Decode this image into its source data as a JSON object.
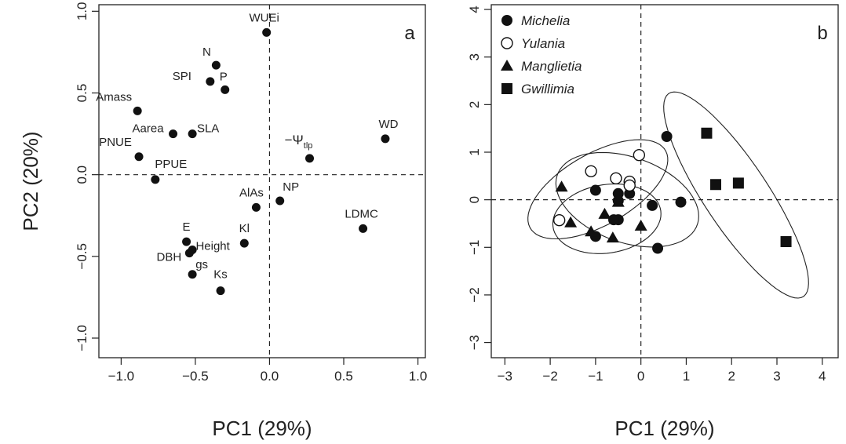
{
  "chart_data": [
    {
      "type": "scatter",
      "panel": "a",
      "xlabel": "PC1 (29%)",
      "ylabel": "PC2 (20%)",
      "xlim": [
        -1.15,
        1.05
      ],
      "ylim": [
        -1.12,
        1.04
      ],
      "xticks": [
        -1.0,
        -0.5,
        0.0,
        0.5,
        1.0
      ],
      "xtick_labels": [
        "−1.0",
        "−0.5",
        "0.0",
        "0.5",
        "1.0"
      ],
      "yticks": [
        -1.0,
        -0.5,
        0.0,
        0.5,
        1.0
      ],
      "ytick_labels": [
        "−1.0",
        "−0.5",
        "0.0",
        "0.5",
        "1.0"
      ],
      "reference_lines": {
        "x": 0,
        "y": 0
      },
      "points": [
        {
          "label": "WUEi",
          "x": -0.02,
          "y": 0.87
        },
        {
          "label": "N",
          "x": -0.36,
          "y": 0.67
        },
        {
          "label": "SPI",
          "x": -0.4,
          "y": 0.57
        },
        {
          "label": "P",
          "x": -0.3,
          "y": 0.52
        },
        {
          "label": "Amass",
          "x": -0.89,
          "y": 0.39
        },
        {
          "label": "Aarea",
          "x": -0.65,
          "y": 0.25
        },
        {
          "label": "SLA",
          "x": -0.52,
          "y": 0.25
        },
        {
          "label": "PNUE",
          "x": -0.88,
          "y": 0.11
        },
        {
          "label": "PPUE",
          "x": -0.77,
          "y": -0.03
        },
        {
          "label": "−Ψ",
          "sub": "tlp",
          "x": 0.27,
          "y": 0.1
        },
        {
          "label": "WD",
          "x": 0.78,
          "y": 0.22
        },
        {
          "label": "NP",
          "x": 0.07,
          "y": -0.16
        },
        {
          "label": "AlAs",
          "x": -0.09,
          "y": -0.2
        },
        {
          "label": "LDMC",
          "x": 0.63,
          "y": -0.33
        },
        {
          "label": "Kl",
          "x": -0.17,
          "y": -0.42
        },
        {
          "label": "E",
          "x": -0.56,
          "y": -0.41
        },
        {
          "label": "Height",
          "x": -0.52,
          "y": -0.46
        },
        {
          "label": "DBH",
          "x": -0.54,
          "y": -0.48
        },
        {
          "label": "gs",
          "x": -0.52,
          "y": -0.61
        },
        {
          "label": "Ks",
          "x": -0.33,
          "y": -0.71
        }
      ],
      "annotation": "a"
    },
    {
      "type": "scatter",
      "panel": "b",
      "xlabel": "PC1 (29%)",
      "ylabel": "",
      "xlim": [
        -3.3,
        4.35
      ],
      "ylim": [
        -3.32,
        4.1
      ],
      "xticks": [
        -3,
        -2,
        -1,
        0,
        1,
        2,
        3,
        4
      ],
      "xtick_labels": [
        "−3",
        "−2",
        "−1",
        "0",
        "1",
        "2",
        "3",
        "4"
      ],
      "yticks": [
        -3,
        -2,
        -1,
        0,
        1,
        2,
        3,
        4
      ],
      "ytick_labels": [
        "−3",
        "−2",
        "−1",
        "0",
        "1",
        "2",
        "3",
        "4"
      ],
      "reference_lines": {
        "x": 0,
        "y": 0
      },
      "legend_position": "top-left",
      "series": [
        {
          "name": "Michelia",
          "marker": "filled-circle",
          "points": [
            [
              0.57,
              1.33
            ],
            [
              -0.5,
              0.13
            ],
            [
              -1.0,
              0.2
            ],
            [
              -0.25,
              0.13
            ],
            [
              -0.5,
              -0.02
            ],
            [
              0.25,
              -0.12
            ],
            [
              0.88,
              -0.05
            ],
            [
              -0.5,
              -0.42
            ],
            [
              -0.6,
              -0.42
            ],
            [
              -1.0,
              -0.77
            ],
            [
              0.37,
              -1.02
            ]
          ]
        },
        {
          "name": "Yulania",
          "marker": "open-circle",
          "points": [
            [
              -1.1,
              0.6
            ],
            [
              -0.55,
              0.45
            ],
            [
              -0.25,
              0.38
            ],
            [
              -0.25,
              0.3
            ],
            [
              -0.04,
              0.94
            ],
            [
              -1.8,
              -0.43
            ]
          ]
        },
        {
          "name": "Manglietia",
          "marker": "filled-triangle",
          "points": [
            [
              -1.75,
              0.27
            ],
            [
              -1.55,
              -0.48
            ],
            [
              -1.1,
              -0.67
            ],
            [
              -0.8,
              -0.3
            ],
            [
              -0.5,
              -0.05
            ],
            [
              -0.62,
              -0.8
            ],
            [
              0.0,
              -0.55
            ]
          ]
        },
        {
          "name": "Gwillimia",
          "marker": "filled-square",
          "points": [
            [
              1.45,
              1.4
            ],
            [
              1.65,
              0.32
            ],
            [
              2.15,
              0.35
            ],
            [
              3.2,
              -0.88
            ]
          ]
        }
      ],
      "ellipses": [
        {
          "group": "Michelia",
          "center": [
            -0.3,
            0.0
          ],
          "semi_axes": [
            1.63,
            0.9
          ],
          "angle_deg": -18
        },
        {
          "group": "Yulania",
          "center": [
            -0.95,
            0.22
          ],
          "semi_axes": [
            1.7,
            0.76
          ],
          "angle_deg": 28
        },
        {
          "group": "Manglietia",
          "center": [
            -0.75,
            -0.4
          ],
          "semi_axes": [
            1.2,
            0.72
          ],
          "angle_deg": 8
        },
        {
          "group": "Gwillimia",
          "center": [
            2.1,
            0.1
          ],
          "semi_axes": [
            2.6,
            0.7
          ],
          "angle_deg": -55
        }
      ],
      "annotation": "b"
    }
  ]
}
